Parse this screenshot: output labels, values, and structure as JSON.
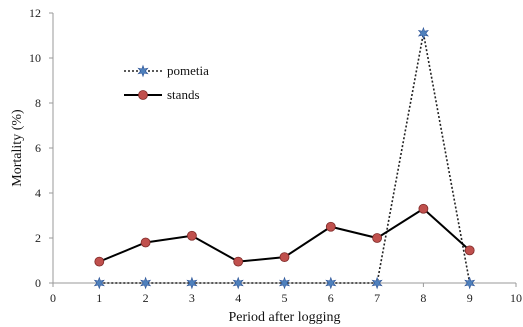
{
  "chart_data": {
    "type": "line",
    "title": "",
    "xlabel": "Period after logging",
    "ylabel": "Mortality (%)",
    "xlim": [
      0,
      10
    ],
    "ylim": [
      0,
      12
    ],
    "xticks": [
      "0",
      "1",
      "2",
      "3",
      "4",
      "5",
      "6",
      "7",
      "8",
      "9",
      "10"
    ],
    "yticks": [
      "0",
      "2",
      "4",
      "6",
      "8",
      "10",
      "12"
    ],
    "grid": false,
    "legend_position": "top-left",
    "series": [
      {
        "name": "pometia",
        "line_style": "dotted",
        "line_color": "#222222",
        "marker": "star",
        "marker_color": "#4f81bd",
        "x": [
          1,
          2,
          3,
          4,
          5,
          6,
          7,
          8,
          9
        ],
        "y": [
          0,
          0,
          0,
          0,
          0,
          0,
          0,
          11.1,
          0
        ]
      },
      {
        "name": "stands",
        "line_style": "solid",
        "line_color": "#000000",
        "marker": "circle",
        "marker_color": "#c0504d",
        "x": [
          1,
          2,
          3,
          4,
          5,
          6,
          7,
          8,
          9
        ],
        "y": [
          0.95,
          1.8,
          2.1,
          0.95,
          1.15,
          2.5,
          2.0,
          3.3,
          1.45
        ]
      }
    ]
  }
}
